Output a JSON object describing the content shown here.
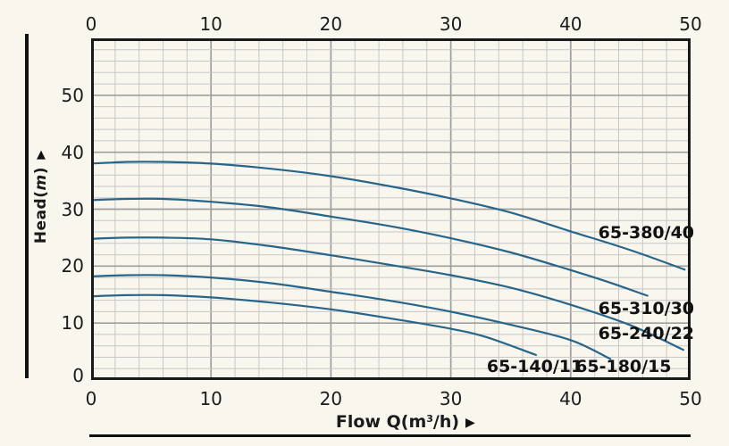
{
  "page": {
    "background": "#f9f6ee"
  },
  "colors": {
    "curve": "#27658a",
    "grid_minor": "#c7c7c7",
    "grid_major": "#9e9e9e",
    "axis_border": "#1a1a1a",
    "background": "#f9f6ee",
    "text": "#1a1a1a"
  },
  "icons": {
    "y_axis_arrow": "▲",
    "x_axis_arrow": "▶"
  },
  "axis_titles": {
    "y_prefix": "Head(",
    "y_unit": "m",
    "y_suffix": ")",
    "x_prefix": "Flow Q(m",
    "x_sup": "3",
    "x_suffix": "/h)"
  },
  "chart_data": {
    "type": "line",
    "title": "",
    "xlabel": "Flow Q(m3/h)",
    "ylabel": "Head(m)",
    "xlim": [
      0,
      50
    ],
    "ylim": [
      0,
      60
    ],
    "x_ticks_top": [
      0,
      10,
      20,
      30,
      40,
      50
    ],
    "x_ticks_bottom": [
      0,
      10,
      20,
      30,
      40,
      50
    ],
    "y_ticks": [
      0,
      10,
      20,
      30,
      40,
      50
    ],
    "grid": {
      "show": true,
      "minor_step": 2,
      "major_step": 10
    },
    "legend_position": "inline-curve-labels",
    "series": [
      {
        "name": "65-380/40",
        "points": [
          [
            0,
            38.0
          ],
          [
            3,
            38.3
          ],
          [
            6,
            38.3
          ],
          [
            10,
            38.0
          ],
          [
            15,
            37.1
          ],
          [
            20,
            35.8
          ],
          [
            25,
            34.0
          ],
          [
            30,
            31.9
          ],
          [
            35,
            29.4
          ],
          [
            40,
            26.1
          ],
          [
            45,
            22.8
          ],
          [
            49.5,
            19.4
          ]
        ]
      },
      {
        "name": "65-310/30",
        "points": [
          [
            0,
            31.6
          ],
          [
            3,
            31.8
          ],
          [
            6,
            31.8
          ],
          [
            10,
            31.3
          ],
          [
            15,
            30.3
          ],
          [
            20,
            28.7
          ],
          [
            25,
            27.0
          ],
          [
            30,
            24.9
          ],
          [
            35,
            22.4
          ],
          [
            40,
            19.3
          ],
          [
            43,
            17.3
          ],
          [
            46.4,
            14.8
          ]
        ]
      },
      {
        "name": "65-240/22",
        "points": [
          [
            0,
            24.8
          ],
          [
            3,
            25.0
          ],
          [
            6,
            25.0
          ],
          [
            10,
            24.7
          ],
          [
            15,
            23.5
          ],
          [
            20,
            21.9
          ],
          [
            25,
            20.2
          ],
          [
            30,
            18.4
          ],
          [
            35,
            16.2
          ],
          [
            40,
            13.2
          ],
          [
            45,
            9.6
          ],
          [
            49.4,
            5.3
          ]
        ]
      },
      {
        "name": "65-180/15",
        "points": [
          [
            0,
            18.2
          ],
          [
            3,
            18.4
          ],
          [
            6,
            18.4
          ],
          [
            10,
            18.0
          ],
          [
            15,
            17.0
          ],
          [
            20,
            15.5
          ],
          [
            25,
            13.9
          ],
          [
            30,
            12.0
          ],
          [
            35,
            9.7
          ],
          [
            40,
            7.0
          ],
          [
            43.3,
            3.7
          ]
        ]
      },
      {
        "name": "65-140/11",
        "points": [
          [
            0,
            14.7
          ],
          [
            3,
            14.9
          ],
          [
            6,
            14.9
          ],
          [
            10,
            14.5
          ],
          [
            15,
            13.6
          ],
          [
            20,
            12.4
          ],
          [
            25,
            10.8
          ],
          [
            30,
            9.0
          ],
          [
            33,
            7.5
          ],
          [
            37.1,
            4.4
          ]
        ]
      }
    ],
    "curve_labels": [
      {
        "text": "65-380/40",
        "x": 46.3,
        "y": 25.8
      },
      {
        "text": "65-310/30",
        "x": 46.3,
        "y": 12.5
      },
      {
        "text": "65-240/22",
        "x": 46.3,
        "y": 8.1
      },
      {
        "text": "65-140/11",
        "x": 37.0,
        "y": 2.3
      },
      {
        "text": "65-180/15",
        "x": 44.4,
        "y": 2.3
      }
    ]
  }
}
